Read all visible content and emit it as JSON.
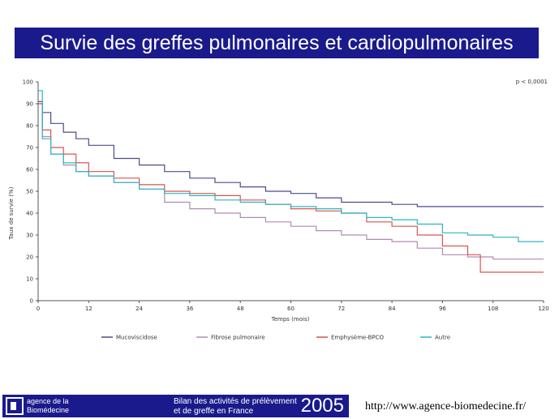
{
  "title": "Survie des greffes pulmonaires et cardiopulmonaires",
  "footer": {
    "logo_line1": "agence de la",
    "logo_line2": "Biomédecine",
    "bilan_line1": "Bilan des activités de prélèvement",
    "bilan_line2": "et de greffe en France",
    "year": "2005",
    "url": "http://www.agence-biomedecine.fr/"
  },
  "colors": {
    "banner": "#1a1a8c",
    "mucoviscidose": "#4b4b8c",
    "fibrose": "#b08ab0",
    "emphyseme": "#d9534f",
    "autre": "#2bb5c0"
  },
  "chart_data": {
    "type": "line",
    "title": "",
    "xlabel": "Temps (mois)",
    "ylabel": "Taux de survie (%)",
    "annotation": "p < 0,0001",
    "xlim": [
      0,
      120
    ],
    "ylim": [
      0,
      100
    ],
    "xticks": [
      0,
      12,
      24,
      36,
      48,
      60,
      72,
      84,
      96,
      108,
      120
    ],
    "yticks": [
      0,
      10,
      20,
      30,
      40,
      50,
      60,
      70,
      80,
      90,
      100
    ],
    "grid": false,
    "legend_position": "bottom",
    "series": [
      {
        "name": "Mucoviscidose",
        "color": "#4b4b8c",
        "x": [
          0,
          1,
          3,
          6,
          9,
          12,
          18,
          24,
          30,
          36,
          42,
          48,
          54,
          60,
          66,
          72,
          78,
          84,
          90,
          96,
          102,
          108,
          114,
          120
        ],
        "y": [
          91,
          86,
          81,
          77,
          74,
          71,
          65,
          62,
          59,
          56,
          54,
          52,
          50,
          49,
          47,
          45,
          45,
          44,
          43,
          43,
          43,
          43,
          43,
          43
        ]
      },
      {
        "name": "Fibrose pulmonaire",
        "color": "#b08ab0",
        "x": [
          0,
          1,
          3,
          6,
          9,
          12,
          18,
          24,
          30,
          36,
          42,
          48,
          54,
          60,
          66,
          72,
          78,
          84,
          90,
          96,
          102,
          108,
          114,
          120
        ],
        "y": [
          90,
          75,
          67,
          62,
          59,
          57,
          54,
          51,
          45,
          42,
          40,
          38,
          36,
          34,
          32,
          30,
          28,
          27,
          24,
          21,
          20,
          19,
          19,
          19
        ]
      },
      {
        "name": "Emphysème-BPCO",
        "color": "#d9534f",
        "x": [
          0,
          1,
          3,
          6,
          9,
          12,
          18,
          24,
          30,
          36,
          42,
          48,
          54,
          60,
          66,
          72,
          78,
          84,
          90,
          96,
          102,
          105,
          108,
          114,
          120
        ],
        "y": [
          90,
          78,
          70,
          67,
          63,
          59,
          56,
          53,
          50,
          49,
          48,
          46,
          44,
          42,
          41,
          40,
          36,
          34,
          30,
          25,
          21,
          13,
          13,
          13,
          13
        ]
      },
      {
        "name": "Autre",
        "color": "#2bb5c0",
        "x": [
          0,
          1,
          3,
          6,
          9,
          12,
          18,
          24,
          30,
          36,
          42,
          48,
          54,
          60,
          66,
          72,
          78,
          84,
          90,
          96,
          102,
          108,
          114,
          120
        ],
        "y": [
          96,
          74,
          67,
          63,
          59,
          57,
          54,
          51,
          49,
          48,
          46,
          45,
          44,
          43,
          42,
          40,
          38,
          37,
          35,
          31,
          30,
          29,
          27,
          27
        ]
      }
    ]
  }
}
